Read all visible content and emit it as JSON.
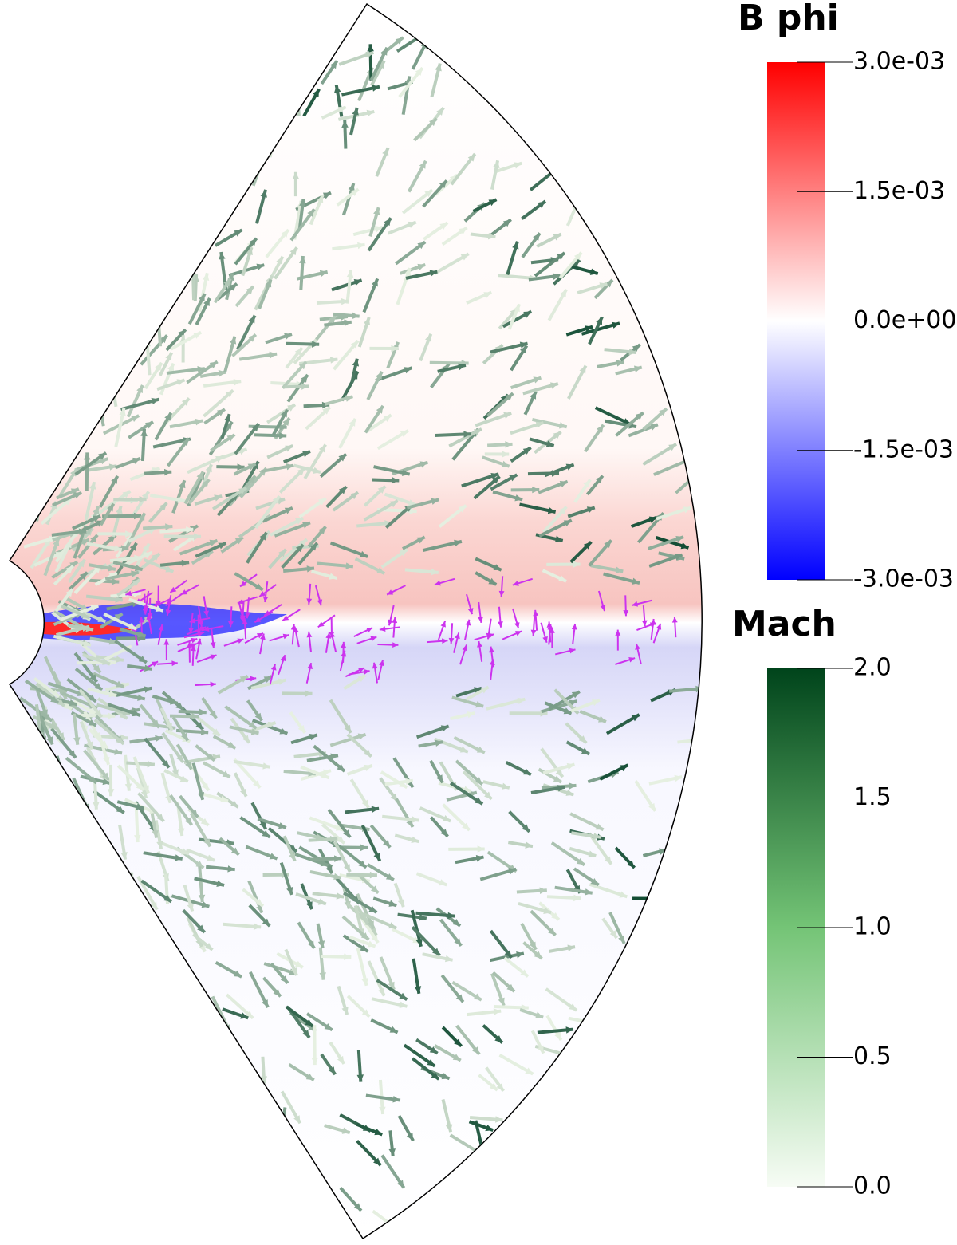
{
  "chart_data": [
    {
      "type": "colorbar",
      "title": "B phi",
      "ylim": [
        -0.003,
        0.003
      ],
      "yticks": [
        {
          "value": 0.003,
          "label": "3.0e-03"
        },
        {
          "value": 0.0015,
          "label": "1.5e-03"
        },
        {
          "value": 0,
          "label": "0.0e+00"
        },
        {
          "value": -0.0015,
          "label": "-1.5e-03"
        },
        {
          "value": -0.003,
          "label": "-3.0e-03"
        }
      ],
      "colors": [
        "#0000ff",
        "#ffffff",
        "#ff0000"
      ]
    },
    {
      "type": "colorbar",
      "title": "Mach",
      "ylim": [
        0,
        2
      ],
      "yticks": [
        {
          "value": 2,
          "label": "2.0"
        },
        {
          "value": 1.5,
          "label": "1.5"
        },
        {
          "value": 1,
          "label": "1.0"
        },
        {
          "value": 0.5,
          "label": "0.5"
        },
        {
          "value": 0,
          "label": "0.0"
        }
      ],
      "colors": [
        "#f7fcf5",
        "#74c476",
        "#00441b"
      ]
    }
  ]
}
